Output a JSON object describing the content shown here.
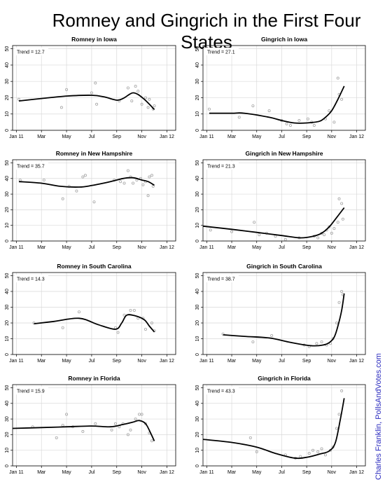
{
  "title": "Romney and Gingrich in the First Four States",
  "credit": "Charles Franklin, PollsAndVotes.com",
  "colors": {
    "trend": "#000000",
    "points": "#a6a6a6",
    "grid": "#d9d9d9",
    "credit": "#2b2bbf"
  },
  "chart_data": [
    {
      "type": "scatter",
      "title": "Romney in Iowa",
      "trend_label": "Trend = 12.7",
      "x_ticks": [
        "Jan 11",
        "Mar",
        "May",
        "Jul",
        "Sep",
        "Nov",
        "Jan 12"
      ],
      "x_tick_months": [
        0,
        2,
        4,
        6,
        8,
        10,
        12
      ],
      "x_range_months": [
        -0.3,
        12.7
      ],
      "y_ticks": [
        0,
        10,
        20,
        30,
        40,
        50
      ],
      "ylim": [
        0,
        52
      ],
      "grid": true,
      "points": [
        [
          0.2,
          19
        ],
        [
          3.6,
          14
        ],
        [
          4.0,
          25
        ],
        [
          6.0,
          23
        ],
        [
          6.3,
          29
        ],
        [
          6.4,
          16
        ],
        [
          8.2,
          18
        ],
        [
          8.9,
          26
        ],
        [
          9.2,
          18
        ],
        [
          9.5,
          27
        ],
        [
          9.7,
          24
        ],
        [
          10.0,
          16
        ],
        [
          10.3,
          20
        ],
        [
          10.5,
          14
        ],
        [
          10.6,
          19
        ],
        [
          10.9,
          13
        ],
        [
          11.0,
          15
        ]
      ],
      "trend": [
        [
          0.2,
          18
        ],
        [
          2.0,
          19.5
        ],
        [
          4.0,
          21
        ],
        [
          6.0,
          21.5
        ],
        [
          7.0,
          20.5
        ],
        [
          8.0,
          18.5
        ],
        [
          8.5,
          19.5
        ],
        [
          9.0,
          22
        ],
        [
          9.3,
          23
        ],
        [
          9.7,
          22
        ],
        [
          10.2,
          19
        ],
        [
          10.6,
          16
        ],
        [
          11.0,
          12.7
        ]
      ]
    },
    {
      "type": "scatter",
      "title": "Gingrich in Iowa",
      "trend_label": "Trend = 27.1",
      "x_ticks": [
        "Jan 11",
        "Mar",
        "May",
        "Jul",
        "Sep",
        "Nov",
        "Jan 12"
      ],
      "x_tick_months": [
        0,
        2,
        4,
        6,
        8,
        10,
        12
      ],
      "x_range_months": [
        -0.3,
        12.7
      ],
      "y_ticks": [
        0,
        10,
        20,
        30,
        40,
        50
      ],
      "ylim": [
        0,
        52
      ],
      "grid": true,
      "points": [
        [
          0.2,
          13
        ],
        [
          2.6,
          8
        ],
        [
          3.7,
          15
        ],
        [
          5.0,
          12
        ],
        [
          6.0,
          6
        ],
        [
          6.4,
          4
        ],
        [
          6.7,
          3
        ],
        [
          7.4,
          6
        ],
        [
          8.1,
          7
        ],
        [
          8.4,
          5
        ],
        [
          8.6,
          3
        ],
        [
          9.5,
          7
        ],
        [
          9.8,
          12
        ],
        [
          10.2,
          5
        ],
        [
          10.5,
          32
        ],
        [
          10.6,
          22
        ],
        [
          10.8,
          19
        ]
      ],
      "trend": [
        [
          0.2,
          10.5
        ],
        [
          2.0,
          10.5
        ],
        [
          3.0,
          10.5
        ],
        [
          5.0,
          8
        ],
        [
          6.0,
          6
        ],
        [
          7.0,
          4.5
        ],
        [
          8.0,
          4.5
        ],
        [
          9.0,
          5.5
        ],
        [
          9.5,
          8
        ],
        [
          10.0,
          12
        ],
        [
          10.5,
          19
        ],
        [
          11.0,
          27.1
        ]
      ]
    },
    {
      "type": "scatter",
      "title": "Romney in New Hampshire",
      "trend_label": "Trend = 35.7",
      "x_ticks": [
        "Jan 11",
        "Mar",
        "May",
        "Jul",
        "Sep",
        "Nov",
        "Jan 12"
      ],
      "x_tick_months": [
        0,
        2,
        4,
        6,
        8,
        10,
        12
      ],
      "x_range_months": [
        -0.3,
        12.7
      ],
      "y_ticks": [
        0,
        10,
        20,
        30,
        40,
        50
      ],
      "ylim": [
        0,
        52
      ],
      "grid": true,
      "points": [
        [
          0.3,
          39
        ],
        [
          2.2,
          39
        ],
        [
          3.7,
          27
        ],
        [
          4.2,
          35
        ],
        [
          4.8,
          32
        ],
        [
          5.3,
          41
        ],
        [
          5.5,
          42
        ],
        [
          6.2,
          25
        ],
        [
          7.8,
          39
        ],
        [
          8.3,
          38
        ],
        [
          8.6,
          37
        ],
        [
          8.9,
          45
        ],
        [
          9.1,
          41
        ],
        [
          9.3,
          37
        ],
        [
          9.6,
          39
        ],
        [
          9.9,
          40
        ],
        [
          10.1,
          36
        ],
        [
          10.3,
          38
        ],
        [
          10.5,
          29
        ],
        [
          10.6,
          41
        ],
        [
          10.8,
          42
        ],
        [
          10.9,
          35
        ]
      ],
      "trend": [
        [
          0.2,
          38
        ],
        [
          2.0,
          37
        ],
        [
          3.5,
          35
        ],
        [
          5.0,
          34.5
        ],
        [
          6.0,
          35.5
        ],
        [
          7.5,
          38
        ],
        [
          8.5,
          40
        ],
        [
          9.3,
          40.5
        ],
        [
          10.0,
          39
        ],
        [
          10.5,
          38
        ],
        [
          11.0,
          35.7
        ]
      ]
    },
    {
      "type": "scatter",
      "title": "Gingrich in New Hampshire",
      "trend_label": "Trend = 21.3",
      "x_ticks": [
        "Jan 11",
        "Mar",
        "May",
        "Jul",
        "Sep",
        "Nov",
        "Jan 12"
      ],
      "x_tick_months": [
        0,
        2,
        4,
        6,
        8,
        10,
        12
      ],
      "x_range_months": [
        -0.3,
        12.7
      ],
      "y_ticks": [
        0,
        10,
        20,
        30,
        40,
        50
      ],
      "ylim": [
        0,
        52
      ],
      "grid": true,
      "points": [
        [
          0.3,
          7
        ],
        [
          2.0,
          6
        ],
        [
          3.8,
          12
        ],
        [
          4.2,
          4
        ],
        [
          4.8,
          5
        ],
        [
          5.5,
          3
        ],
        [
          6.3,
          1
        ],
        [
          7.4,
          2
        ],
        [
          8.6,
          3
        ],
        [
          8.9,
          2
        ],
        [
          9.2,
          5
        ],
        [
          9.4,
          4
        ],
        [
          9.6,
          7
        ],
        [
          9.8,
          9
        ],
        [
          10.0,
          5
        ],
        [
          10.2,
          8
        ],
        [
          10.5,
          12
        ],
        [
          10.6,
          27
        ],
        [
          10.8,
          24
        ],
        [
          10.9,
          14
        ]
      ],
      "trend": [
        [
          -0.3,
          9.5
        ],
        [
          2.0,
          7.5
        ],
        [
          4.0,
          5.5
        ],
        [
          6.0,
          3.5
        ],
        [
          7.5,
          2
        ],
        [
          8.5,
          3
        ],
        [
          9.2,
          5
        ],
        [
          9.8,
          9
        ],
        [
          10.3,
          14
        ],
        [
          11.0,
          21.3
        ]
      ]
    },
    {
      "type": "scatter",
      "title": "Romney in South Carolina",
      "trend_label": "Trend = 14.3",
      "x_ticks": [
        "Jan 11",
        "Mar",
        "May",
        "Jul",
        "Sep",
        "Nov",
        "Jan 12"
      ],
      "x_tick_months": [
        0,
        2,
        4,
        6,
        8,
        10,
        12
      ],
      "x_range_months": [
        -0.3,
        12.7
      ],
      "y_ticks": [
        0,
        10,
        20,
        30,
        40,
        50
      ],
      "ylim": [
        0,
        52
      ],
      "grid": true,
      "points": [
        [
          1.4,
          20
        ],
        [
          3.7,
          17
        ],
        [
          5.0,
          27
        ],
        [
          7.9,
          17
        ],
        [
          8.1,
          14
        ],
        [
          8.6,
          25
        ],
        [
          9.1,
          28
        ],
        [
          9.4,
          28
        ],
        [
          9.7,
          23
        ],
        [
          10.1,
          23
        ],
        [
          10.3,
          16
        ],
        [
          10.8,
          20
        ],
        [
          11.0,
          15
        ]
      ],
      "trend": [
        [
          1.4,
          19.5
        ],
        [
          3.0,
          21
        ],
        [
          5.0,
          23
        ],
        [
          6.5,
          19
        ],
        [
          7.9,
          16
        ],
        [
          8.4,
          20
        ],
        [
          8.8,
          25
        ],
        [
          9.5,
          24.5
        ],
        [
          10.2,
          22
        ],
        [
          10.6,
          18
        ],
        [
          11.0,
          14.3
        ]
      ]
    },
    {
      "type": "scatter",
      "title": "Gingrich in South Carolina",
      "trend_label": "Trend = 38.7",
      "x_ticks": [
        "Jan 11",
        "Mar",
        "May",
        "Jul",
        "Sep",
        "Nov",
        "Jan 12"
      ],
      "x_tick_months": [
        0,
        2,
        4,
        6,
        8,
        10,
        12
      ],
      "x_range_months": [
        -0.3,
        12.7
      ],
      "y_ticks": [
        0,
        10,
        20,
        30,
        40,
        50
      ],
      "ylim": [
        0,
        52
      ],
      "grid": true,
      "points": [
        [
          1.3,
          13
        ],
        [
          3.7,
          8
        ],
        [
          5.2,
          12
        ],
        [
          7.8,
          6
        ],
        [
          8.2,
          5
        ],
        [
          8.8,
          7
        ],
        [
          9.2,
          8
        ],
        [
          9.6,
          6
        ],
        [
          9.9,
          7
        ],
        [
          10.1,
          10
        ],
        [
          10.4,
          20
        ],
        [
          10.6,
          33
        ],
        [
          10.8,
          40
        ],
        [
          10.9,
          38
        ]
      ],
      "trend": [
        [
          1.3,
          12.5
        ],
        [
          3.0,
          11.5
        ],
        [
          5.0,
          10.5
        ],
        [
          6.5,
          8
        ],
        [
          7.5,
          6.5
        ],
        [
          8.5,
          5.5
        ],
        [
          9.3,
          6
        ],
        [
          9.8,
          7.5
        ],
        [
          10.2,
          11
        ],
        [
          10.5,
          18
        ],
        [
          10.8,
          28
        ],
        [
          11.0,
          38.7
        ]
      ]
    },
    {
      "type": "scatter",
      "title": "Romney in Florida",
      "trend_label": "Trend = 15.9",
      "x_ticks": [
        "Jan 11",
        "Mar",
        "May",
        "Jul",
        "Sep",
        "Nov",
        "Jan 12"
      ],
      "x_tick_months": [
        0,
        2,
        4,
        6,
        8,
        10,
        12
      ],
      "x_range_months": [
        -0.3,
        12.7
      ],
      "y_ticks": [
        0,
        10,
        20,
        30,
        40,
        50
      ],
      "ylim": [
        0,
        52
      ],
      "grid": true,
      "points": [
        [
          1.3,
          25
        ],
        [
          3.2,
          18
        ],
        [
          3.7,
          26
        ],
        [
          4.0,
          33
        ],
        [
          4.5,
          25
        ],
        [
          5.3,
          22
        ],
        [
          6.3,
          27
        ],
        [
          7.6,
          23
        ],
        [
          7.9,
          27
        ],
        [
          8.2,
          25
        ],
        [
          8.5,
          27
        ],
        [
          8.9,
          20
        ],
        [
          9.1,
          23
        ],
        [
          9.5,
          30
        ],
        [
          9.8,
          33
        ],
        [
          10.0,
          33
        ],
        [
          10.3,
          27
        ],
        [
          10.6,
          21
        ],
        [
          10.8,
          16
        ]
      ],
      "trend": [
        [
          -0.3,
          24
        ],
        [
          2.0,
          24.5
        ],
        [
          4.0,
          25
        ],
        [
          6.0,
          25.5
        ],
        [
          7.5,
          25
        ],
        [
          8.5,
          26.5
        ],
        [
          9.3,
          28
        ],
        [
          9.8,
          29
        ],
        [
          10.3,
          27
        ],
        [
          10.7,
          21
        ],
        [
          11.0,
          15.9
        ]
      ]
    },
    {
      "type": "scatter",
      "title": "Gingrich in Florida",
      "trend_label": "Trend = 43.3",
      "x_ticks": [
        "Jan 11",
        "Mar",
        "May",
        "Jul",
        "Sep",
        "Nov",
        "Jan 12"
      ],
      "x_tick_months": [
        0,
        2,
        4,
        6,
        8,
        10,
        12
      ],
      "x_range_months": [
        -0.3,
        12.7
      ],
      "y_ticks": [
        0,
        10,
        20,
        30,
        40,
        50
      ],
      "ylim": [
        0,
        52
      ],
      "grid": true,
      "points": [
        [
          3.5,
          18
        ],
        [
          4.0,
          9
        ],
        [
          6.3,
          7
        ],
        [
          7.1,
          5
        ],
        [
          7.5,
          6
        ],
        [
          8.2,
          8
        ],
        [
          8.5,
          10
        ],
        [
          8.9,
          9
        ],
        [
          9.2,
          11
        ],
        [
          9.5,
          7
        ],
        [
          9.9,
          10
        ],
        [
          10.1,
          12
        ],
        [
          10.4,
          24
        ],
        [
          10.6,
          33
        ],
        [
          10.8,
          48
        ]
      ],
      "trend": [
        [
          -0.3,
          17
        ],
        [
          2.0,
          15
        ],
        [
          4.0,
          12
        ],
        [
          5.5,
          8
        ],
        [
          7.0,
          5
        ],
        [
          8.0,
          5.5
        ],
        [
          9.0,
          7.5
        ],
        [
          9.8,
          9.5
        ],
        [
          10.3,
          15
        ],
        [
          10.7,
          30
        ],
        [
          11.0,
          43.3
        ]
      ]
    }
  ]
}
